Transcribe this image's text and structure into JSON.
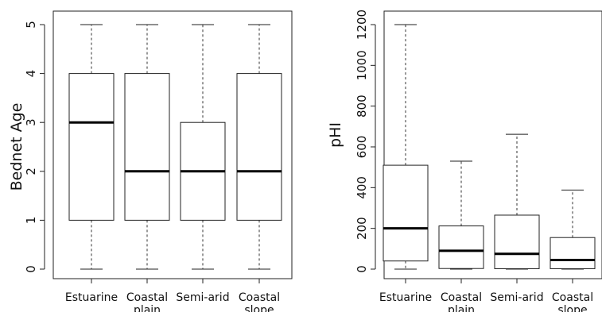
{
  "chart_data": [
    {
      "type": "box",
      "title": "",
      "xlabel": "",
      "ylabel": "Bednet Age",
      "ylim": [
        0,
        5
      ],
      "yticks": [
        0,
        1,
        2,
        3,
        4,
        5
      ],
      "categories": [
        {
          "lines": [
            "Estuarine"
          ],
          "min": 0,
          "q1": 1,
          "median": 3,
          "q3": 4,
          "max": 5
        },
        {
          "lines": [
            "Coastal",
            "plain"
          ],
          "min": 0,
          "q1": 1,
          "median": 2,
          "q3": 4,
          "max": 5
        },
        {
          "lines": [
            "Semi-arid"
          ],
          "min": 0,
          "q1": 1,
          "median": 2,
          "q3": 3,
          "max": 5
        },
        {
          "lines": [
            "Coastal",
            "slope"
          ],
          "min": 0,
          "q1": 1,
          "median": 2,
          "q3": 4,
          "max": 5
        }
      ]
    },
    {
      "type": "box",
      "title": "",
      "xlabel": "",
      "ylabel": "pHI",
      "ylim": [
        0,
        1200
      ],
      "yticks": [
        0,
        200,
        400,
        600,
        800,
        1000,
        1200
      ],
      "categories": [
        {
          "lines": [
            "Estuarine"
          ],
          "min": 0,
          "q1": 40,
          "median": 200,
          "q3": 510,
          "max": 1200
        },
        {
          "lines": [
            "Coastal",
            "plain"
          ],
          "min": 0,
          "q1": 3,
          "median": 90,
          "q3": 212,
          "max": 530
        },
        {
          "lines": [
            "Semi-arid"
          ],
          "min": 0,
          "q1": 2,
          "median": 75,
          "q3": 265,
          "max": 662
        },
        {
          "lines": [
            "Coastal",
            "slope"
          ],
          "min": 0,
          "q1": 2,
          "median": 45,
          "q3": 155,
          "max": 388
        }
      ]
    }
  ]
}
